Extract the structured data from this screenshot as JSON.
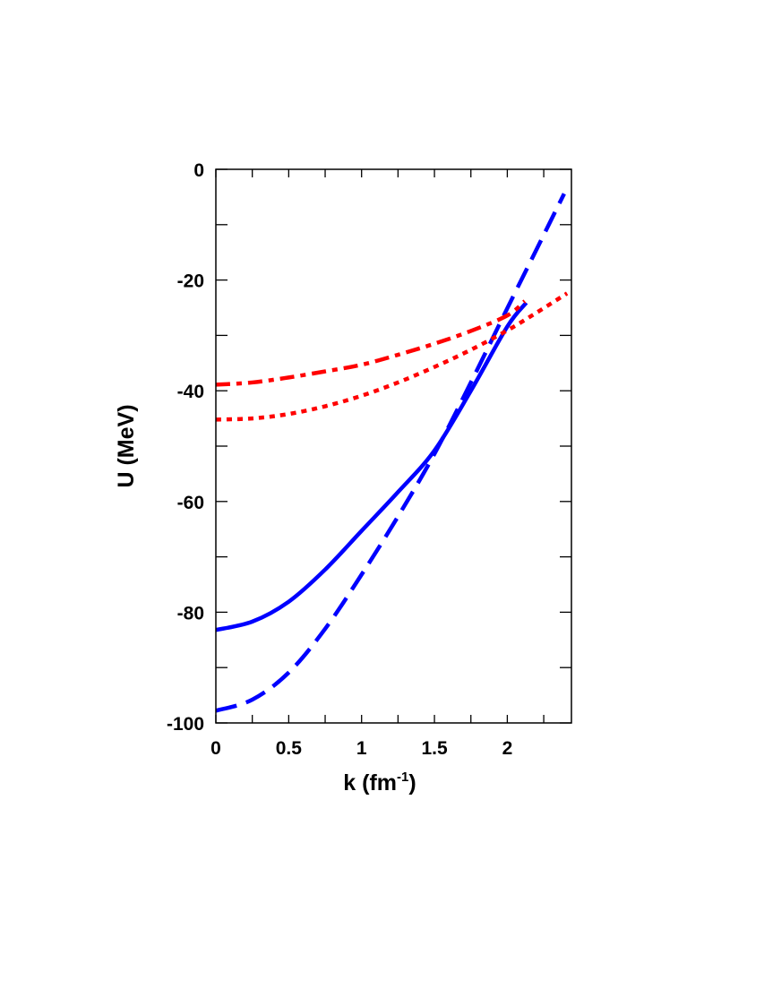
{
  "chart_data": {
    "type": "line",
    "title": "",
    "xlabel": "k (fm",
    "xlabel_sup": "-1",
    "xlabel_close": ")",
    "ylabel": "U (MeV)",
    "xlim": [
      0,
      2.44
    ],
    "ylim": [
      -100,
      0
    ],
    "xticks": [
      0,
      0.5,
      1,
      1.5,
      2
    ],
    "xtick_labels": [
      "0",
      "0.5",
      "1",
      "1.5",
      "2"
    ],
    "yticks": [
      0,
      -20,
      -40,
      -60,
      -80,
      -100
    ],
    "ytick_labels": [
      "0",
      "-20",
      "-40",
      "-60",
      "-80",
      "-100"
    ],
    "x_minor_step": 0.25,
    "y_minor_step": 10,
    "grid": false,
    "legend": "none",
    "series": [
      {
        "style": "solid",
        "color": "#0000ff",
        "x": [
          0,
          0.25,
          0.5,
          0.75,
          1,
          1.25,
          1.5,
          1.75,
          2,
          2.13
        ],
        "y": [
          -83.2,
          -81.7,
          -78.1,
          -72.3,
          -65.3,
          -58.3,
          -50.8,
          -40.0,
          -28.4,
          -24.1
        ]
      },
      {
        "style": "dashed",
        "color": "#0000ff",
        "x": [
          0,
          0.25,
          0.5,
          0.75,
          1,
          1.25,
          1.5,
          1.75,
          2,
          2.2,
          2.39
        ],
        "y": [
          -97.8,
          -95.8,
          -90.9,
          -83.0,
          -73.2,
          -62.7,
          -51.4,
          -38.5,
          -25.1,
          -14.5,
          -4.4
        ]
      },
      {
        "style": "dash-dot",
        "color": "#ff0000",
        "x": [
          0,
          0.25,
          0.5,
          0.75,
          1,
          1.25,
          1.5,
          1.75,
          2,
          2.12
        ],
        "y": [
          -38.9,
          -38.5,
          -37.6,
          -36.5,
          -35.3,
          -33.5,
          -31.5,
          -29.2,
          -26.4,
          -23.8
        ]
      },
      {
        "style": "dotted",
        "color": "#ff0000",
        "x": [
          0,
          0.25,
          0.5,
          0.75,
          1,
          1.25,
          1.5,
          1.75,
          2,
          2.2,
          2.41
        ],
        "y": [
          -45.2,
          -45.0,
          -44.2,
          -42.8,
          -40.9,
          -38.5,
          -35.7,
          -32.6,
          -29.1,
          -25.9,
          -22.4
        ]
      }
    ]
  }
}
